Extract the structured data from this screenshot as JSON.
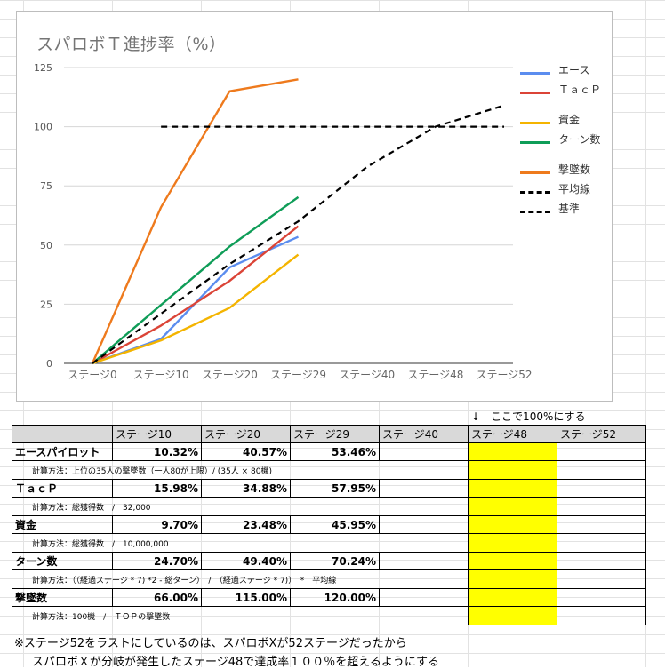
{
  "chart_data": {
    "type": "line",
    "title": "スパロボＴ進捗率（%）",
    "categories": [
      "ステージ0",
      "ステージ10",
      "ステージ20",
      "ステージ29",
      "ステージ40",
      "ステージ48",
      "ステージ52"
    ],
    "ylim": [
      0,
      125
    ],
    "yticks": [
      "0",
      "25",
      "50",
      "75",
      "100",
      "125"
    ],
    "grid": true,
    "legend_position": "right",
    "series": [
      {
        "name": "エース",
        "color": "#5b8def",
        "dash": false,
        "values": [
          0,
          10.32,
          40.57,
          53.46,
          null,
          null,
          null
        ]
      },
      {
        "name": "ＴａｃＰ",
        "color": "#db4437",
        "dash": false,
        "values": [
          0,
          15.98,
          34.88,
          57.95,
          null,
          null,
          null
        ]
      },
      {
        "name": "資金",
        "color": "#f4b400",
        "dash": false,
        "values": [
          0,
          9.7,
          23.48,
          45.95,
          null,
          null,
          null
        ]
      },
      {
        "name": "ターン数",
        "color": "#0f9d58",
        "dash": false,
        "values": [
          0,
          24.7,
          49.4,
          70.24,
          null,
          null,
          null
        ]
      },
      {
        "name": "撃墜数",
        "color": "#ee7a1d",
        "dash": false,
        "values": [
          0,
          66.0,
          115.0,
          120.0,
          null,
          null,
          null
        ]
      },
      {
        "name": "平均線",
        "color": "#000000",
        "dash": true,
        "values": [
          0,
          21,
          42,
          60,
          83,
          100,
          109
        ]
      },
      {
        "name": "基準",
        "color": "#000000",
        "dash": true,
        "values": [
          null,
          100,
          100,
          100,
          100,
          100,
          100
        ]
      }
    ]
  },
  "note_above_table": "↓　ここで100%にする",
  "table": {
    "headers": [
      "",
      "ステージ10",
      "ステージ20",
      "ステージ29",
      "ステージ40",
      "ステージ48",
      "ステージ52"
    ],
    "rows": [
      {
        "name": "エースパイロット",
        "values": [
          "10.32%",
          "40.57%",
          "53.46%",
          "",
          "",
          ""
        ],
        "calc": "計算方法：上位の35人の撃墜数（一人80が上限）/ (35人 × 80機)"
      },
      {
        "name": "ＴａｃＰ",
        "values": [
          "15.98%",
          "34.88%",
          "57.95%",
          "",
          "",
          ""
        ],
        "calc": "計算方法：総獲得数　/　32,000"
      },
      {
        "name": "資金",
        "values": [
          "9.70%",
          "23.48%",
          "45.95%",
          "",
          "",
          ""
        ],
        "calc": "計算方法：総獲得数　/　10,000,000"
      },
      {
        "name": "ターン数",
        "values": [
          "24.70%",
          "49.40%",
          "70.24%",
          "",
          "",
          ""
        ],
        "calc": "計算方法：（（経過ステージ * 7) *2 - 総ターン）　/　（経過ステージ * 7)）　*　平均線"
      },
      {
        "name": "撃墜数",
        "values": [
          "66.00%",
          "115.00%",
          "120.00%",
          "",
          "",
          ""
        ],
        "calc": "計算方法：100機　/　ＴＯＰの撃墜数"
      }
    ]
  },
  "footnotes": [
    "※ステージ52をラストにしているのは、スパロボXが52ステージだったから",
    "スパロボＸが分岐が発生したステージ48で達成率１００％を超えるようにする"
  ]
}
